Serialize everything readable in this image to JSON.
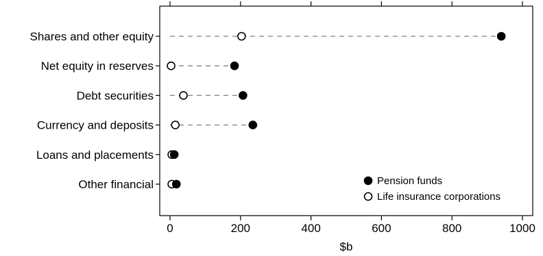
{
  "chart_data": {
    "type": "dot",
    "categories": [
      "Shares and other equity",
      "Net equity in reserves",
      "Debt securities",
      "Currency and deposits",
      "Loans and placements",
      "Other financial"
    ],
    "series": [
      {
        "name": "Pension funds",
        "marker": "filled-circle",
        "values": [
          940,
          183,
          207,
          235,
          12,
          18
        ]
      },
      {
        "name": "Life insurance corporations",
        "marker": "open-circle",
        "values": [
          203,
          3,
          38,
          15,
          5,
          5
        ]
      }
    ],
    "xlabel": "$b",
    "xlim": [
      -30,
      1020
    ],
    "xticks": [
      0,
      200,
      400,
      600,
      800,
      1000
    ],
    "connector_style": "dashed",
    "legend_position": "bottom-right",
    "grid": false,
    "colors": {
      "marker": "#000000",
      "connector": "#808080",
      "axis": "#000000"
    }
  }
}
